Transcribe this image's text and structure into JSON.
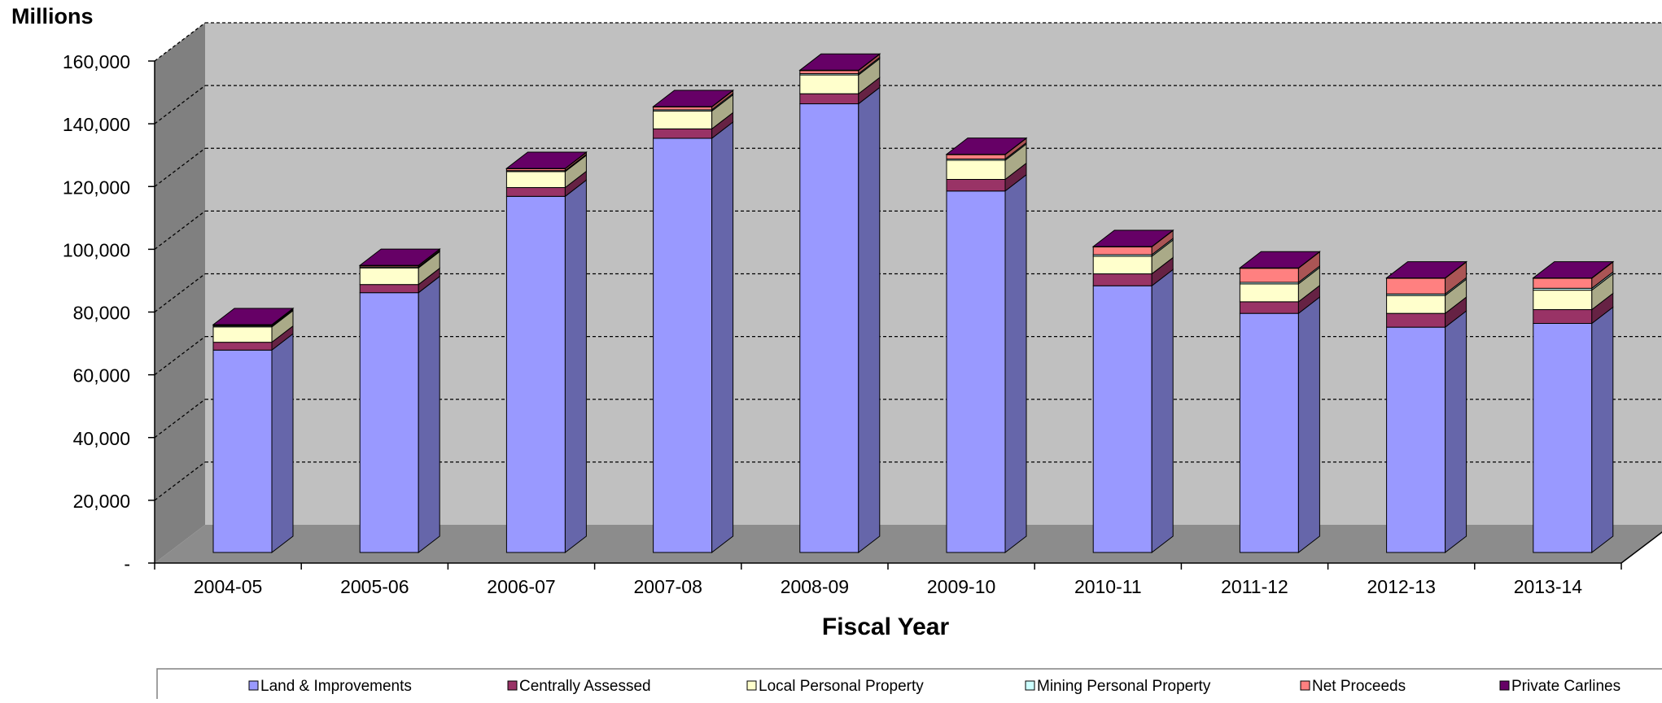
{
  "chart_data": {
    "type": "bar",
    "stacked": true,
    "three_d": true,
    "title": "",
    "xlabel": "Fiscal Year",
    "ylabel": "Millions",
    "ylim": [
      0,
      160000
    ],
    "yticks": [
      0,
      20000,
      40000,
      60000,
      80000,
      100000,
      120000,
      140000,
      160000
    ],
    "ytick_labels": [
      "-",
      "20,000",
      "40,000",
      "60,000",
      "80,000",
      "100,000",
      "120,000",
      "140,000",
      "160,000"
    ],
    "grid": true,
    "legend_position": "bottom",
    "categories": [
      "2004-05",
      "2005-06",
      "2006-07",
      "2007-08",
      "2008-09",
      "2009-10",
      "2010-11",
      "2011-12",
      "2012-13",
      "2013-14"
    ],
    "series": [
      {
        "name": "Land & Improvements",
        "color": "#9999ff",
        "side_color": "#6666aa",
        "values": [
          64500,
          82800,
          113500,
          132000,
          143000,
          115200,
          85000,
          76200,
          71800,
          73000
        ]
      },
      {
        "name": "Centrally Assessed",
        "color": "#993366",
        "side_color": "#662244",
        "values": [
          2500,
          2600,
          2800,
          3000,
          3200,
          3700,
          3800,
          3700,
          4400,
          4400
        ]
      },
      {
        "name": "Local Personal Property",
        "color": "#ffffcc",
        "side_color": "#aaaa88",
        "values": [
          4900,
          5300,
          5100,
          5700,
          6000,
          6100,
          5600,
          5700,
          5700,
          6200
        ]
      },
      {
        "name": "Mining Personal Property",
        "color": "#ccffff",
        "side_color": "#88aaaa",
        "values": [
          300,
          300,
          300,
          400,
          400,
          400,
          500,
          500,
          500,
          600
        ]
      },
      {
        "name": "Net Proceeds",
        "color": "#ff8080",
        "side_color": "#aa5555",
        "values": [
          300,
          400,
          600,
          900,
          1000,
          1400,
          2500,
          4500,
          5000,
          3200
        ]
      },
      {
        "name": "Private Carlines",
        "color": "#660066",
        "side_color": "#440044",
        "values": [
          100,
          100,
          100,
          100,
          100,
          100,
          100,
          100,
          100,
          100
        ]
      }
    ],
    "colors": {
      "back_wall": "#c0c0c0",
      "side_wall": "#808080",
      "floor": "#8c8c8c",
      "gridline": "#000000",
      "legend_border": "#808080"
    }
  }
}
